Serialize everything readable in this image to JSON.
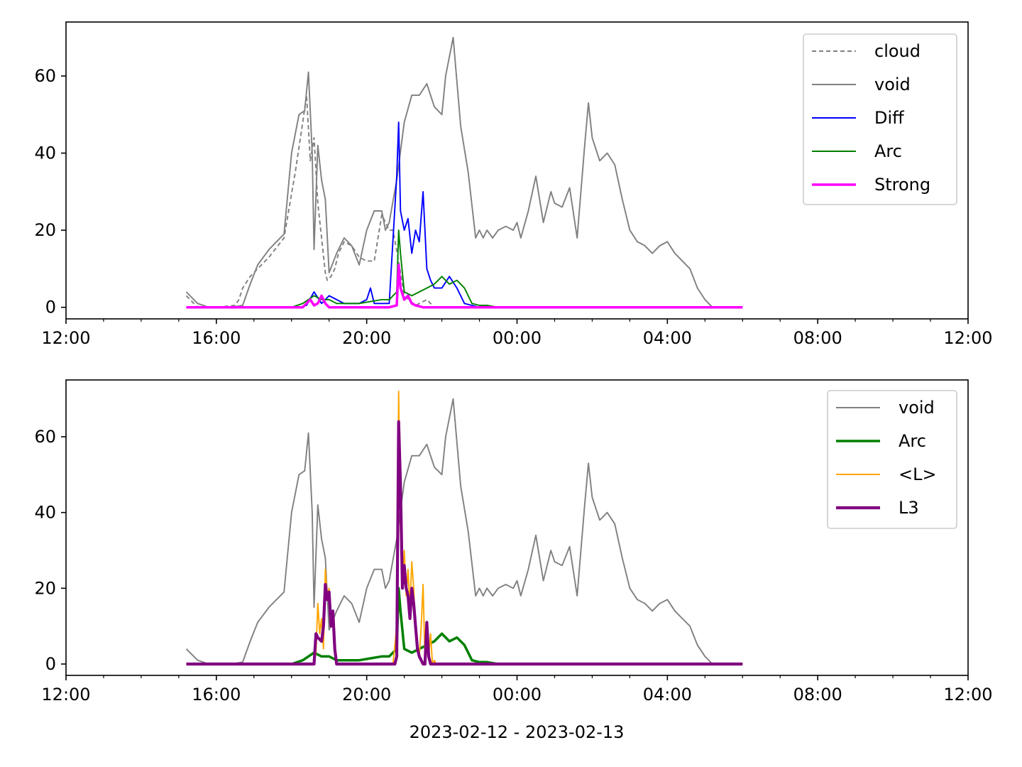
{
  "chart_data": [
    {
      "type": "line",
      "xlim": [
        "12:00",
        "12:00 (+1 day)"
      ],
      "xlim_hours": [
        0,
        24
      ],
      "ylim": [
        -3,
        74
      ],
      "x_tick_labels": [
        "12:00",
        "16:00",
        "20:00",
        "00:00",
        "04:00",
        "08:00",
        "12:00"
      ],
      "x_tick_hours": [
        0,
        4,
        8,
        12,
        16,
        20,
        24
      ],
      "minor_tick_hours": [
        1,
        2,
        3,
        5,
        6,
        7,
        9,
        10,
        11,
        13,
        14,
        15,
        17,
        18,
        19,
        21,
        22,
        23
      ],
      "y_tick_labels": [
        "0",
        "20",
        "40",
        "60"
      ],
      "y_tick_values": [
        0,
        20,
        40,
        60
      ],
      "legend_position": "upper right",
      "legend": [
        "cloud",
        "void",
        "Diff",
        "Arc",
        "Strong"
      ],
      "series": [
        {
          "name": "cloud",
          "color": "#808080",
          "style": "dashed",
          "width": 1.2,
          "x": [
            3.2,
            3.5,
            4.0,
            4.5,
            4.6,
            4.7,
            4.9,
            5.1,
            5.4,
            5.8,
            6.1,
            6.3,
            6.4,
            6.5,
            6.6,
            6.7,
            6.8,
            6.9,
            6.95,
            7.05,
            7.15,
            7.25,
            7.4,
            7.6,
            7.8,
            8.0,
            8.2,
            8.4,
            8.5,
            8.6,
            8.7,
            8.85,
            9.0,
            9.3,
            9.6,
            9.8,
            10.0,
            10.3,
            10.6,
            10.8,
            11.0,
            11.1,
            11.3,
            11.45,
            11.6,
            11.8,
            12.0,
            12.2,
            12.4,
            12.6,
            12.8,
            13.0,
            13.2,
            13.4,
            13.6,
            13.7,
            13.8,
            13.9,
            14.0,
            14.2,
            14.4,
            14.6,
            14.8,
            15.0,
            15.2,
            15.4,
            15.6,
            15.8,
            16.0,
            16.2,
            16.4,
            16.6,
            16.8,
            17.0,
            17.2,
            17.4,
            18.0
          ],
          "y": [
            3,
            0,
            0,
            0.5,
            2,
            5,
            8,
            10,
            13,
            18,
            35,
            48,
            55,
            38,
            44,
            27,
            18,
            9,
            7,
            8,
            10,
            14,
            17,
            16,
            13,
            12,
            12,
            24,
            22,
            20,
            20,
            12,
            3,
            0.5,
            2,
            0,
            0,
            0,
            0,
            0,
            0,
            0,
            0,
            0,
            0,
            0,
            0,
            0,
            0,
            0,
            0,
            0,
            0,
            0,
            0,
            0,
            0,
            0,
            0,
            0,
            0,
            0,
            0,
            0,
            0,
            0,
            0,
            0,
            0,
            0,
            0,
            0,
            0,
            0,
            0,
            0,
            0
          ]
        },
        {
          "name": "void",
          "color": "#808080",
          "style": "solid",
          "width": 1.2,
          "x": [
            3.2,
            3.5,
            3.8,
            4.4,
            4.7,
            4.9,
            5.1,
            5.4,
            5.6,
            5.8,
            6.0,
            6.2,
            6.35,
            6.45,
            6.55,
            6.6,
            6.7,
            6.8,
            6.9,
            7.0,
            7.2,
            7.4,
            7.6,
            7.8,
            8.0,
            8.2,
            8.4,
            8.5,
            8.6,
            8.8,
            9.0,
            9.2,
            9.4,
            9.6,
            9.8,
            10.0,
            10.1,
            10.3,
            10.5,
            10.7,
            10.9,
            11.0,
            11.1,
            11.2,
            11.35,
            11.5,
            11.7,
            11.9,
            12.0,
            12.1,
            12.3,
            12.5,
            12.7,
            12.9,
            13.0,
            13.2,
            13.4,
            13.6,
            13.8,
            13.9,
            14.0,
            14.2,
            14.4,
            14.6,
            14.8,
            15.0,
            15.2,
            15.4,
            15.6,
            15.8,
            16.0,
            16.2,
            16.4,
            16.6,
            16.8,
            17.0,
            17.2,
            17.4,
            17.6,
            18.0
          ],
          "y": [
            4,
            1,
            0,
            0,
            0.5,
            6,
            11,
            15,
            17,
            19,
            40,
            50,
            51,
            61,
            40,
            15,
            42,
            33,
            28,
            9,
            14,
            18,
            16,
            11,
            20,
            25,
            25,
            20,
            22,
            33,
            48,
            55,
            55,
            58,
            52,
            50,
            60,
            70,
            47,
            35,
            18,
            20,
            18,
            20,
            18,
            20,
            21,
            20,
            22,
            18,
            25,
            34,
            22,
            30,
            27,
            26,
            31,
            18,
            42,
            53,
            44,
            38,
            40,
            37,
            28,
            20,
            17,
            16,
            14,
            16,
            17,
            14,
            12,
            10,
            5,
            2,
            0,
            0,
            0,
            0
          ]
        },
        {
          "name": "Diff",
          "color": "#0000ff",
          "style": "solid",
          "width": 1.2,
          "x": [
            3.2,
            6.2,
            6.4,
            6.6,
            6.8,
            7.0,
            7.2,
            7.4,
            7.6,
            7.8,
            8.0,
            8.1,
            8.2,
            8.4,
            8.6,
            8.8,
            8.85,
            8.9,
            9.0,
            9.1,
            9.2,
            9.3,
            9.4,
            9.5,
            9.6,
            9.7,
            9.8,
            9.9,
            10.0,
            10.2,
            10.4,
            10.6,
            10.8,
            11.0,
            11.2,
            11.4,
            12.0,
            13.0,
            14.0,
            16.0,
            18.0
          ],
          "y": [
            0,
            0,
            0.5,
            4,
            1,
            3,
            2,
            1,
            1,
            1,
            2,
            5,
            1,
            1,
            1,
            34,
            48,
            25,
            20,
            23,
            14,
            20,
            17,
            30,
            10,
            7,
            5,
            5,
            5,
            8,
            5,
            1,
            0.5,
            0,
            0,
            0,
            0,
            0,
            0,
            0,
            0
          ]
        },
        {
          "name": "Arc",
          "color": "#008000",
          "style": "solid",
          "width": 1.2,
          "x": [
            3.2,
            6.0,
            6.3,
            6.6,
            6.8,
            7.0,
            7.2,
            7.5,
            7.8,
            8.1,
            8.4,
            8.6,
            8.8,
            8.85,
            8.9,
            9.0,
            9.2,
            9.4,
            9.6,
            9.8,
            10.0,
            10.2,
            10.4,
            10.6,
            10.8,
            11.0,
            11.2,
            11.5,
            12.0,
            13.0,
            15.0,
            18.0
          ],
          "y": [
            0,
            0,
            1,
            3,
            2,
            2,
            1,
            1,
            1,
            1.5,
            2,
            2,
            4,
            20,
            14,
            4,
            3,
            4,
            5,
            6,
            8,
            6,
            7,
            5,
            1,
            0.5,
            0.5,
            0,
            0,
            0,
            0,
            0
          ]
        },
        {
          "name": "Strong",
          "color": "#ff00ff",
          "style": "solid",
          "width": 2.2,
          "x": [
            3.2,
            6.3,
            6.4,
            6.5,
            6.6,
            6.7,
            6.8,
            6.9,
            7.0,
            7.2,
            8.6,
            8.8,
            8.85,
            8.9,
            9.0,
            9.1,
            9.2,
            9.3,
            9.5,
            10.0,
            12.0,
            14.0,
            16.0,
            18.0
          ],
          "y": [
            0,
            0,
            1,
            2,
            0.5,
            1,
            3,
            1,
            0,
            0,
            0,
            0.5,
            11,
            5,
            2,
            3,
            1,
            0.5,
            0,
            0,
            0,
            0,
            0,
            0
          ]
        }
      ]
    },
    {
      "type": "line",
      "xlim": [
        "12:00",
        "12:00 (+1 day)"
      ],
      "xlim_hours": [
        0,
        24
      ],
      "ylim": [
        -3,
        75
      ],
      "x_tick_labels": [
        "12:00",
        "16:00",
        "20:00",
        "00:00",
        "04:00",
        "08:00",
        "12:00"
      ],
      "x_tick_hours": [
        0,
        4,
        8,
        12,
        16,
        20,
        24
      ],
      "minor_tick_hours": [
        1,
        2,
        3,
        5,
        6,
        7,
        9,
        10,
        11,
        13,
        14,
        15,
        17,
        18,
        19,
        21,
        22,
        23
      ],
      "y_tick_labels": [
        "0",
        "20",
        "40",
        "60"
      ],
      "y_tick_values": [
        0,
        20,
        40,
        60
      ],
      "xlabel": "2023-02-12 - 2023-02-13",
      "legend_position": "upper right",
      "legend": [
        "void",
        "Arc",
        "<L>",
        "L3"
      ],
      "series": [
        {
          "name": "void",
          "color": "#808080",
          "style": "solid",
          "width": 1.2,
          "x": [
            3.2,
            3.5,
            3.8,
            4.4,
            4.7,
            4.9,
            5.1,
            5.4,
            5.6,
            5.8,
            6.0,
            6.2,
            6.35,
            6.45,
            6.55,
            6.6,
            6.7,
            6.8,
            6.9,
            7.0,
            7.2,
            7.4,
            7.6,
            7.8,
            8.0,
            8.2,
            8.4,
            8.5,
            8.6,
            8.8,
            9.0,
            9.2,
            9.4,
            9.6,
            9.8,
            10.0,
            10.1,
            10.3,
            10.5,
            10.7,
            10.9,
            11.0,
            11.1,
            11.2,
            11.35,
            11.5,
            11.7,
            11.9,
            12.0,
            12.1,
            12.3,
            12.5,
            12.7,
            12.9,
            13.0,
            13.2,
            13.4,
            13.6,
            13.8,
            13.9,
            14.0,
            14.2,
            14.4,
            14.6,
            14.8,
            15.0,
            15.2,
            15.4,
            15.6,
            15.8,
            16.0,
            16.2,
            16.4,
            16.6,
            16.8,
            17.0,
            17.2,
            17.4,
            17.6,
            18.0
          ],
          "y": [
            4,
            1,
            0,
            0,
            0.5,
            6,
            11,
            15,
            17,
            19,
            40,
            50,
            51,
            61,
            40,
            15,
            42,
            33,
            28,
            9,
            14,
            18,
            16,
            11,
            20,
            25,
            25,
            20,
            22,
            33,
            48,
            55,
            55,
            58,
            52,
            50,
            60,
            70,
            47,
            35,
            18,
            20,
            18,
            20,
            18,
            20,
            21,
            20,
            22,
            18,
            25,
            34,
            22,
            30,
            27,
            26,
            31,
            18,
            42,
            53,
            44,
            38,
            40,
            37,
            28,
            20,
            17,
            16,
            14,
            16,
            17,
            14,
            12,
            10,
            5,
            2,
            0,
            0,
            0,
            0
          ]
        },
        {
          "name": "Arc",
          "color": "#008000",
          "style": "solid",
          "width": 2.2,
          "x": [
            3.2,
            6.0,
            6.3,
            6.6,
            6.8,
            7.0,
            7.2,
            7.5,
            7.8,
            8.1,
            8.4,
            8.6,
            8.8,
            8.85,
            8.9,
            9.0,
            9.2,
            9.4,
            9.6,
            9.8,
            10.0,
            10.2,
            10.4,
            10.6,
            10.8,
            11.0,
            11.2,
            11.5,
            12.0,
            13.0,
            15.0,
            18.0
          ],
          "y": [
            0,
            0,
            1,
            3,
            2,
            2,
            1,
            1,
            1,
            1.5,
            2,
            2,
            4,
            20,
            14,
            4,
            3,
            4,
            5,
            6,
            8,
            6,
            7,
            5,
            1,
            0.5,
            0.5,
            0,
            0,
            0,
            0,
            0
          ]
        },
        {
          "name": "<L>",
          "color": "#ffa500",
          "style": "solid",
          "width": 1.2,
          "x": [
            3.2,
            6.6,
            6.65,
            6.7,
            6.75,
            6.8,
            6.85,
            6.9,
            6.95,
            7.0,
            7.05,
            7.1,
            7.15,
            7.2,
            7.3,
            8.7,
            8.8,
            8.85,
            8.9,
            8.95,
            9.0,
            9.05,
            9.1,
            9.15,
            9.2,
            9.25,
            9.3,
            9.35,
            9.4,
            9.45,
            9.5,
            9.55,
            9.6,
            9.65,
            9.7,
            9.75,
            9.8,
            9.85,
            9.9,
            10.0,
            12.0,
            15.0,
            18.0
          ],
          "y": [
            0,
            0,
            3,
            16,
            8,
            12,
            4,
            25,
            18,
            20,
            12,
            14,
            5,
            0,
            0,
            0,
            10,
            72,
            35,
            22,
            30,
            18,
            25,
            15,
            27,
            20,
            8,
            5,
            2,
            10,
            21,
            1,
            4,
            2,
            8,
            0,
            1,
            0,
            0,
            0,
            0,
            0,
            0
          ]
        },
        {
          "name": "L3",
          "color": "#800080",
          "style": "solid",
          "width": 2.6,
          "x": [
            3.2,
            6.6,
            6.65,
            6.7,
            6.8,
            6.85,
            6.9,
            6.95,
            7.0,
            7.05,
            7.1,
            7.15,
            7.2,
            7.3,
            8.75,
            8.8,
            8.85,
            8.9,
            8.95,
            9.0,
            9.05,
            9.1,
            9.15,
            9.2,
            9.25,
            9.3,
            9.35,
            9.4,
            9.45,
            9.5,
            9.55,
            9.6,
            9.65,
            9.7,
            9.75,
            9.8,
            10.0,
            12.0,
            15.0,
            18.0
          ],
          "y": [
            0,
            0,
            8,
            7,
            6,
            10,
            21,
            17,
            19,
            10,
            14,
            4,
            0,
            0,
            0,
            2,
            64,
            47,
            20,
            26,
            20,
            18,
            12,
            20,
            16,
            10,
            4,
            2,
            1,
            0,
            0,
            11,
            2,
            0,
            0,
            0,
            0,
            0,
            0,
            0
          ]
        }
      ]
    }
  ]
}
